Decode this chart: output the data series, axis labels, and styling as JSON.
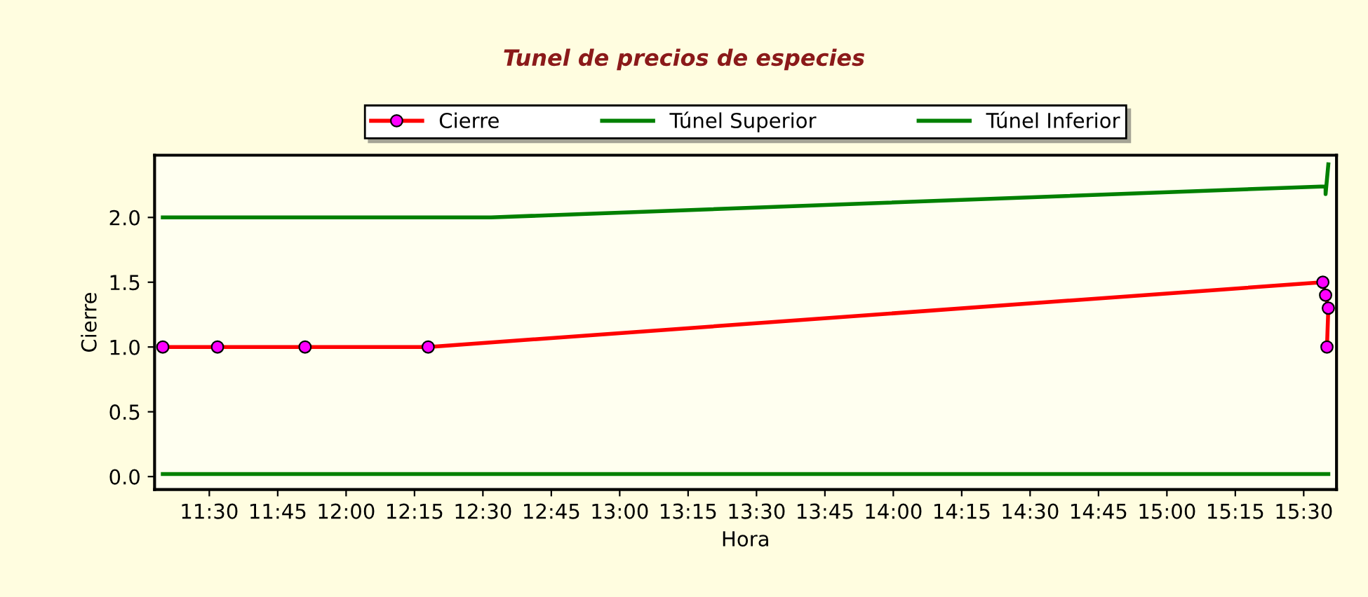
{
  "chart_data": {
    "type": "line",
    "title": "Tunel de precios de especies",
    "xlabel": "Hora",
    "ylabel": "Cierre",
    "xlim": [
      11.3,
      15.62
    ],
    "ylim": [
      -0.1,
      2.48
    ],
    "xticks": [
      {
        "value": 11.5,
        "label": "11:30"
      },
      {
        "value": 11.75,
        "label": "11:45"
      },
      {
        "value": 12.0,
        "label": "12:00"
      },
      {
        "value": 12.25,
        "label": "12:15"
      },
      {
        "value": 12.5,
        "label": "12:30"
      },
      {
        "value": 12.75,
        "label": "12:45"
      },
      {
        "value": 13.0,
        "label": "13:00"
      },
      {
        "value": 13.25,
        "label": "13:15"
      },
      {
        "value": 13.5,
        "label": "13:30"
      },
      {
        "value": 13.75,
        "label": "13:45"
      },
      {
        "value": 14.0,
        "label": "14:00"
      },
      {
        "value": 14.25,
        "label": "14:15"
      },
      {
        "value": 14.5,
        "label": "14:30"
      },
      {
        "value": 14.75,
        "label": "14:45"
      },
      {
        "value": 15.0,
        "label": "15:00"
      },
      {
        "value": 15.25,
        "label": "15:15"
      },
      {
        "value": 15.5,
        "label": "15:30"
      }
    ],
    "yticks": [
      {
        "value": 0,
        "label": "0.0"
      },
      {
        "value": 0.5,
        "label": "0.5"
      },
      {
        "value": 1,
        "label": "1.0"
      },
      {
        "value": 1.5,
        "label": "1.5"
      },
      {
        "value": 2,
        "label": "2.0"
      }
    ],
    "grid": false,
    "legend": "top",
    "series": [
      {
        "name": "Cierre",
        "color": "#ff0000",
        "marker": "circle",
        "x": [
          11.33,
          11.53,
          11.85,
          12.3,
          15.57,
          15.58,
          15.59,
          15.585
        ],
        "values": [
          1.0,
          1.0,
          1.0,
          1.0,
          1.5,
          1.4,
          1.3,
          1.0
        ]
      },
      {
        "name": "Túnel Superior",
        "color": "#008000",
        "marker": "none",
        "x": [
          11.33,
          12.53,
          15.58,
          15.58,
          15.59
        ],
        "values": [
          2.0,
          2.0,
          2.24,
          2.18,
          2.41
        ]
      },
      {
        "name": "Túnel Inferior",
        "color": "#008000",
        "marker": "none",
        "x": [
          11.33,
          15.59
        ],
        "values": [
          0.02,
          0.02
        ]
      }
    ]
  }
}
